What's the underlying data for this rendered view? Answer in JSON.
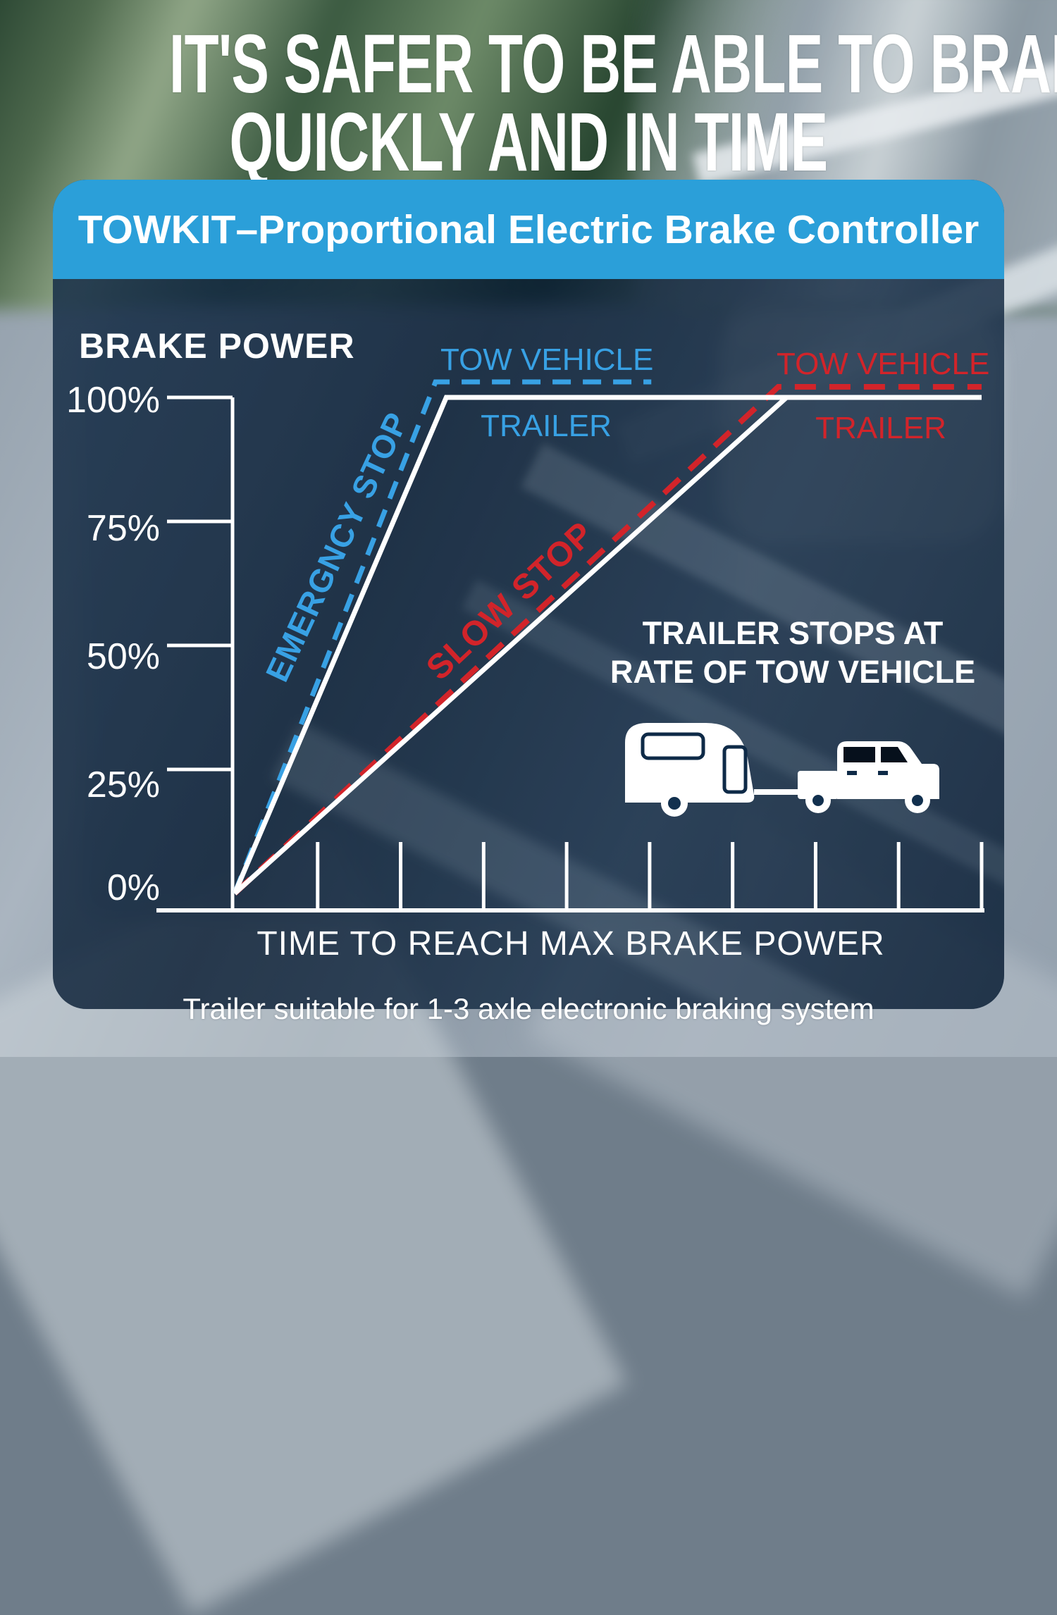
{
  "header": {
    "headline_line1": "IT'S SAFER TO BE ABLE TO BRAKE",
    "headline_line2": "QUICKLY AND IN TIME",
    "banner_title": "TOWKIT–Proportional Electric Brake Controller"
  },
  "footer": {
    "caption": "Trailer suitable for 1-3 axle electronic braking system"
  },
  "colors": {
    "banner_blue": "#2B9FD9",
    "line_blue": "#38A1E4",
    "line_red": "#D2242A",
    "line_white": "#FFFFFF",
    "panel_navy": "#0E2A47"
  },
  "chart_data": {
    "type": "line",
    "title": "BRAKE POWER",
    "xlabel": "TIME TO REACH MAX BRAKE POWER",
    "ylabel": "BRAKE POWER (%)",
    "x_range": [
      0,
      9
    ],
    "x_tick_count": 9,
    "grid": false,
    "legend_position": "inline-labels",
    "y_ticks": [
      {
        "label": "100%",
        "value": 100
      },
      {
        "label": "75%",
        "value": 75
      },
      {
        "label": "50%",
        "value": 50
      },
      {
        "label": "25%",
        "value": 25
      },
      {
        "label": "0%",
        "value": 0
      }
    ],
    "series": [
      {
        "name": "Tow vehicle – emergency stop",
        "label": "TOW VEHICLE",
        "color": "#38A1E4",
        "dash": true,
        "points": [
          [
            0,
            0
          ],
          [
            2.42,
            100
          ],
          [
            5.02,
            100
          ]
        ]
      },
      {
        "name": "Trailer – emergency stop",
        "label": "TRAILER",
        "color": "#FFFFFF",
        "dash": false,
        "points": [
          [
            0,
            0
          ],
          [
            2.55,
            100
          ],
          [
            9.0,
            100
          ]
        ]
      },
      {
        "name": "Tow vehicle – slow stop",
        "label": "TOW VEHICLE",
        "color": "#D2242A",
        "dash": true,
        "points": [
          [
            0,
            0
          ],
          [
            6.55,
            100
          ],
          [
            9.0,
            100
          ]
        ]
      },
      {
        "name": "Trailer – slow stop",
        "label": "TRAILER",
        "color": "#FFFFFF",
        "dash": false,
        "points": [
          [
            0,
            0
          ],
          [
            6.65,
            100
          ]
        ]
      }
    ],
    "annotations": {
      "emergency_stop": "EMERGNCY STOP",
      "slow_stop": "SLOW STOP",
      "note_line1": "TRAILER STOPS AT",
      "note_line2": "RATE OF TOW VEHICLE"
    }
  }
}
